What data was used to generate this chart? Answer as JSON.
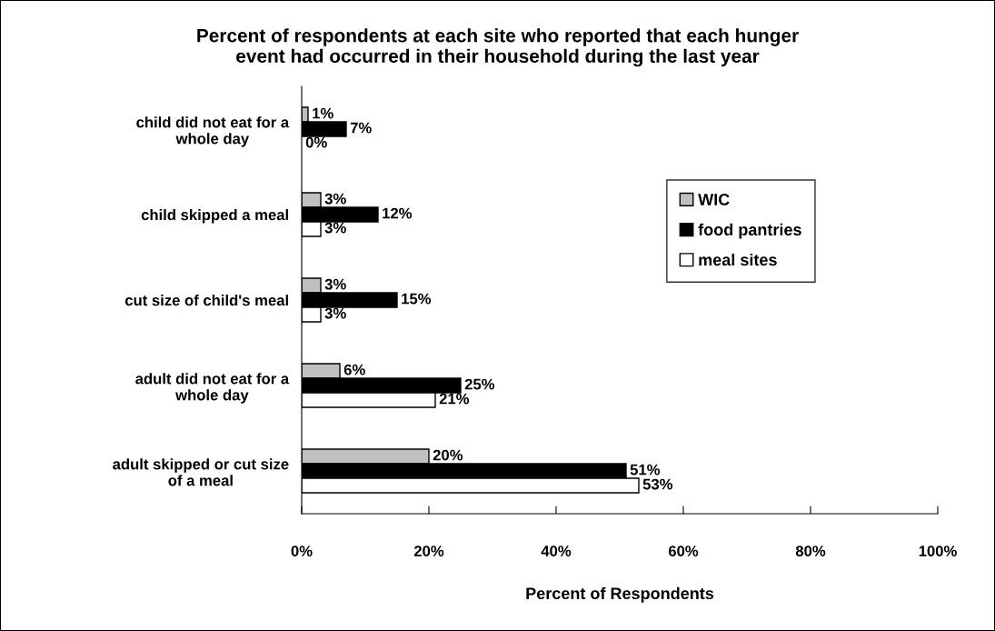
{
  "chart_data": {
    "type": "bar",
    "orientation": "horizontal",
    "title": "Percent of respondents at each site who reported that each hunger\nevent had occurred in their household during the last year",
    "xlabel": "Percent of Respondents",
    "categories": [
      "child did not eat for a\nwhole day",
      "child skipped a meal",
      "cut size of child's meal",
      "adult did not eat for a\nwhole day",
      "adult skipped or cut size\nof a meal"
    ],
    "series": [
      {
        "name": "WIC",
        "color": "#c0c0c0",
        "values": [
          1,
          3,
          3,
          6,
          20
        ],
        "value_labels": [
          "1%",
          "3%",
          "3%",
          "6%",
          "20%"
        ]
      },
      {
        "name": "food pantries",
        "color": "#000000",
        "values": [
          7,
          12,
          15,
          25,
          51
        ],
        "value_labels": [
          "7%",
          "12%",
          "15%",
          "25%",
          "51%"
        ]
      },
      {
        "name": "meal sites",
        "color": "#ffffff",
        "values": [
          0,
          3,
          3,
          21,
          53
        ],
        "value_labels": [
          "0%",
          "3%",
          "3%",
          "21%",
          "53%"
        ]
      }
    ],
    "xlim": [
      0,
      100
    ],
    "xticks": [
      {
        "value": 0,
        "label": "0%"
      },
      {
        "value": 20,
        "label": "20%"
      },
      {
        "value": 40,
        "label": "40%"
      },
      {
        "value": 60,
        "label": "60%"
      },
      {
        "value": 80,
        "label": "80%"
      },
      {
        "value": 100,
        "label": "100%"
      }
    ],
    "grid": false,
    "legend": "top right"
  }
}
